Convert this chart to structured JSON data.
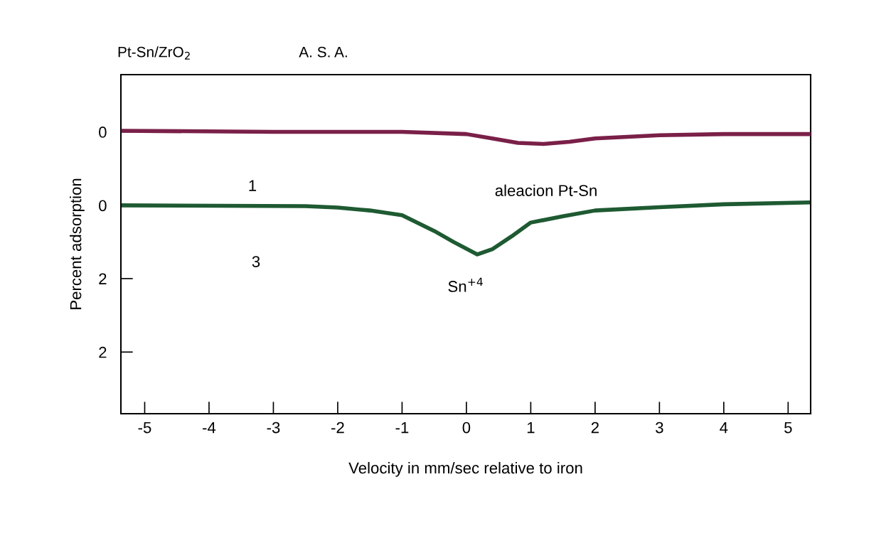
{
  "chart_data": {
    "type": "line",
    "title": "Pt-Sn/ZrO$_{2}$",
    "xlabel": "Velocity in mm/sec relative to iron",
    "y2label": "Percent adsorption",
    "series": [
      {
        "color": "#7a2048",
        "axis": "y2",
        "x": [
          -5.37,
          -3,
          -1,
          0,
          0.4,
          0.8,
          1.2,
          1.6,
          2,
          3,
          4,
          5.35
        ],
        "values": [
          -0.01,
          0,
          0,
          0.02,
          0.06,
          0.1,
          0.11,
          0.09,
          0.06,
          0.03,
          0.02,
          0.02
        ]
      },
      {
        "color": "#1e5a32",
        "x": [
          -5.37,
          -2.5,
          -2,
          -1.5,
          -1,
          -0.5,
          -0.2,
          0.17,
          0.4,
          0.7,
          1,
          1.5,
          2,
          3,
          4,
          5.35
        ],
        "values": [
          0,
          0.02,
          0.06,
          0.14,
          0.27,
          0.7,
          1.0,
          1.34,
          1.2,
          0.85,
          0.47,
          0.3,
          0.14,
          0.05,
          -0.03,
          -0.08
        ]
      }
    ],
    "annotations": [
      "A. S. A.",
      "1",
      "3",
      "aleacion Pt-Sn",
      "Sn$^{+4}$"
    ],
    "xlim": [
      -5.37,
      5.35
    ],
    "xticks": [
      -5,
      -4,
      -3,
      -2,
      -1,
      0,
      1,
      2,
      3,
      4,
      5
    ],
    "ylim": [
      5.69,
      -3.57
    ],
    "yticks": [
      0,
      2
    ],
    "y2lim": [
      2.56,
      -0.52
    ],
    "y2ticks": [
      0,
      2
    ],
    "grid": false,
    "marker": "none",
    "line_style": "solid"
  }
}
